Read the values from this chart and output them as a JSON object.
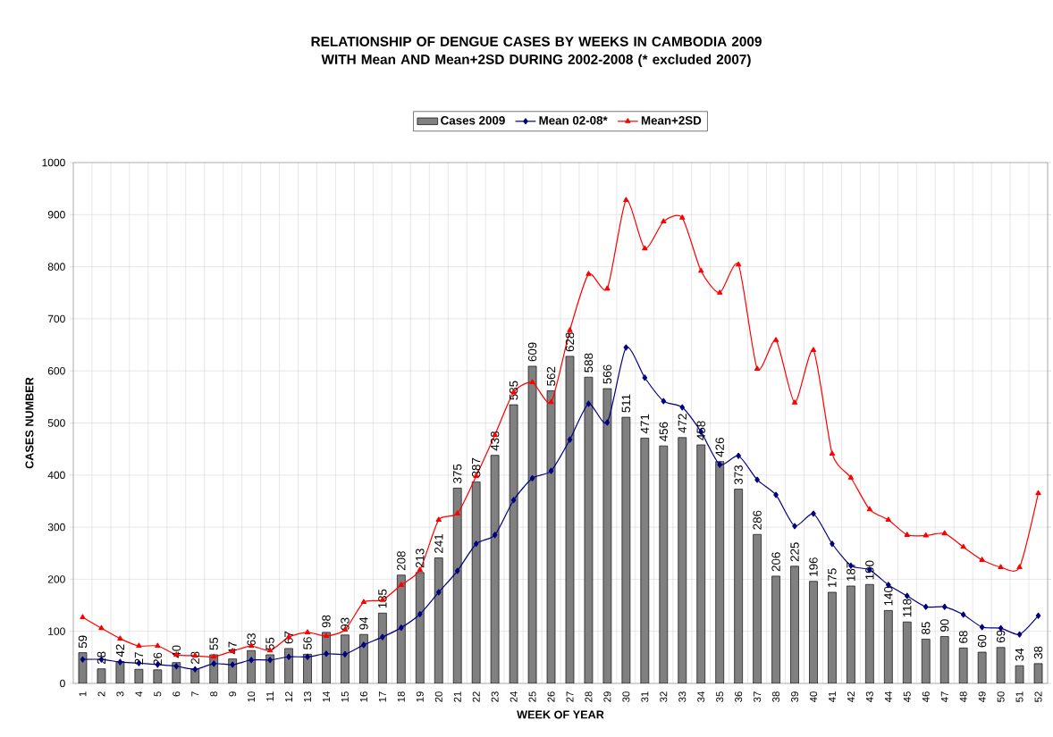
{
  "chart_data": {
    "type": "bar",
    "title": "RELATIONSHIP OF DENGUE CASES BY WEEKS IN CAMBODIA 2009\nWITH Mean AND Mean+2SD DURING 2002-2008 (* excluded 2007)",
    "xlabel": "WEEK OF YEAR",
    "ylabel": "CASES NUMBER",
    "categories": [
      "1",
      "2",
      "3",
      "4",
      "5",
      "6",
      "7",
      "8",
      "9",
      "10",
      "11",
      "12",
      "13",
      "14",
      "15",
      "16",
      "17",
      "18",
      "19",
      "20",
      "21",
      "22",
      "23",
      "24",
      "25",
      "26",
      "27",
      "28",
      "29",
      "30",
      "31",
      "32",
      "33",
      "34",
      "35",
      "36",
      "37",
      "38",
      "39",
      "40",
      "41",
      "42",
      "43",
      "44",
      "45",
      "46",
      "47",
      "48",
      "49",
      "50",
      "51",
      "52"
    ],
    "series": [
      {
        "name": "Cases 2009",
        "color": "#808080",
        "data_labels": true,
        "values": [
          59,
          28,
          42,
          27,
          26,
          40,
          28,
          55,
          47,
          63,
          55,
          67,
          56,
          98,
          93,
          94,
          135,
          208,
          213,
          241,
          375,
          387,
          438,
          535,
          609,
          562,
          628,
          588,
          566,
          511,
          471,
          456,
          472,
          458,
          426,
          373,
          286,
          206,
          225,
          196,
          175,
          187,
          190,
          140,
          118,
          85,
          90,
          68,
          60,
          69,
          34,
          38
        ]
      },
      {
        "name": "Mean 02-08*",
        "type": "line",
        "color": "#000080",
        "marker": "diamond",
        "values": [
          46,
          46,
          41,
          39,
          36,
          33,
          27,
          38,
          36,
          45,
          45,
          51,
          51,
          57,
          56,
          74,
          89,
          107,
          133,
          175,
          216,
          268,
          285,
          352,
          394,
          408,
          468,
          537,
          501,
          645,
          587,
          542,
          530,
          483,
          420,
          437,
          391,
          362,
          302,
          326,
          268,
          226,
          218,
          189,
          168,
          147,
          147,
          132,
          108,
          106,
          94,
          130
        ]
      },
      {
        "name": "Mean+2SD",
        "type": "line",
        "color": "#ff0000",
        "marker": "triangle",
        "values": [
          127,
          106,
          86,
          72,
          72,
          55,
          53,
          51,
          62,
          72,
          63,
          89,
          98,
          91,
          103,
          156,
          160,
          189,
          218,
          314,
          326,
          398,
          477,
          559,
          578,
          540,
          678,
          786,
          758,
          928,
          835,
          887,
          894,
          792,
          750,
          804,
          604,
          659,
          539,
          640,
          441,
          395,
          334,
          314,
          285,
          284,
          288,
          262,
          237,
          223,
          223,
          365
        ]
      }
    ],
    "ylim": [
      0,
      1000
    ],
    "yticks": [
      0,
      100,
      200,
      300,
      400,
      500,
      600,
      700,
      800,
      900,
      1000
    ],
    "grid": true,
    "legend": "top",
    "line_style": "solid"
  }
}
